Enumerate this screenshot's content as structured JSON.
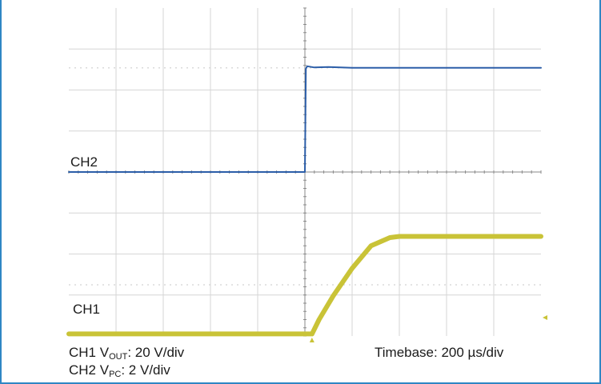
{
  "colors": {
    "ch1": "#c9c337",
    "ch2": "#2c5ea8",
    "grid": "#d6d6d6",
    "axis": "#8a8a8a",
    "frame": "#2f86c4"
  },
  "labels": {
    "ch2": "CH2",
    "ch1": "CH1"
  },
  "captions": {
    "ch1_prefix": "CH1 V",
    "ch1_sub": "OUT",
    "ch1_suffix": ": 20 V/div",
    "ch2_prefix": "CH2 V",
    "ch2_sub": "PC",
    "ch2_suffix": ": 2 V/div",
    "timebase": "Timebase: 200 µs/div"
  },
  "chart_data": {
    "type": "line",
    "title": "",
    "xlabel": "",
    "ylabel": "",
    "grid": true,
    "x_divisions": 10,
    "y_divisions": 8,
    "xlim": [
      0,
      10
    ],
    "ylim": [
      0,
      8
    ],
    "series": [
      {
        "name": "CH2",
        "x": [
          0,
          5.0,
          5.02,
          5.05,
          5.2,
          5.5,
          6.0,
          7.0,
          8.0,
          9.0,
          10.0
        ],
        "y": [
          4.0,
          4.0,
          6.52,
          6.58,
          6.55,
          6.56,
          6.54,
          6.54,
          6.54,
          6.54,
          6.54
        ]
      },
      {
        "name": "CH1",
        "x": [
          0,
          5.15,
          5.3,
          5.6,
          6.0,
          6.4,
          6.8,
          7.0,
          7.5,
          8.0,
          9.0,
          10.0
        ],
        "y": [
          0.05,
          0.05,
          0.4,
          0.98,
          1.65,
          2.2,
          2.4,
          2.43,
          2.43,
          2.43,
          2.43,
          2.43
        ]
      }
    ]
  }
}
